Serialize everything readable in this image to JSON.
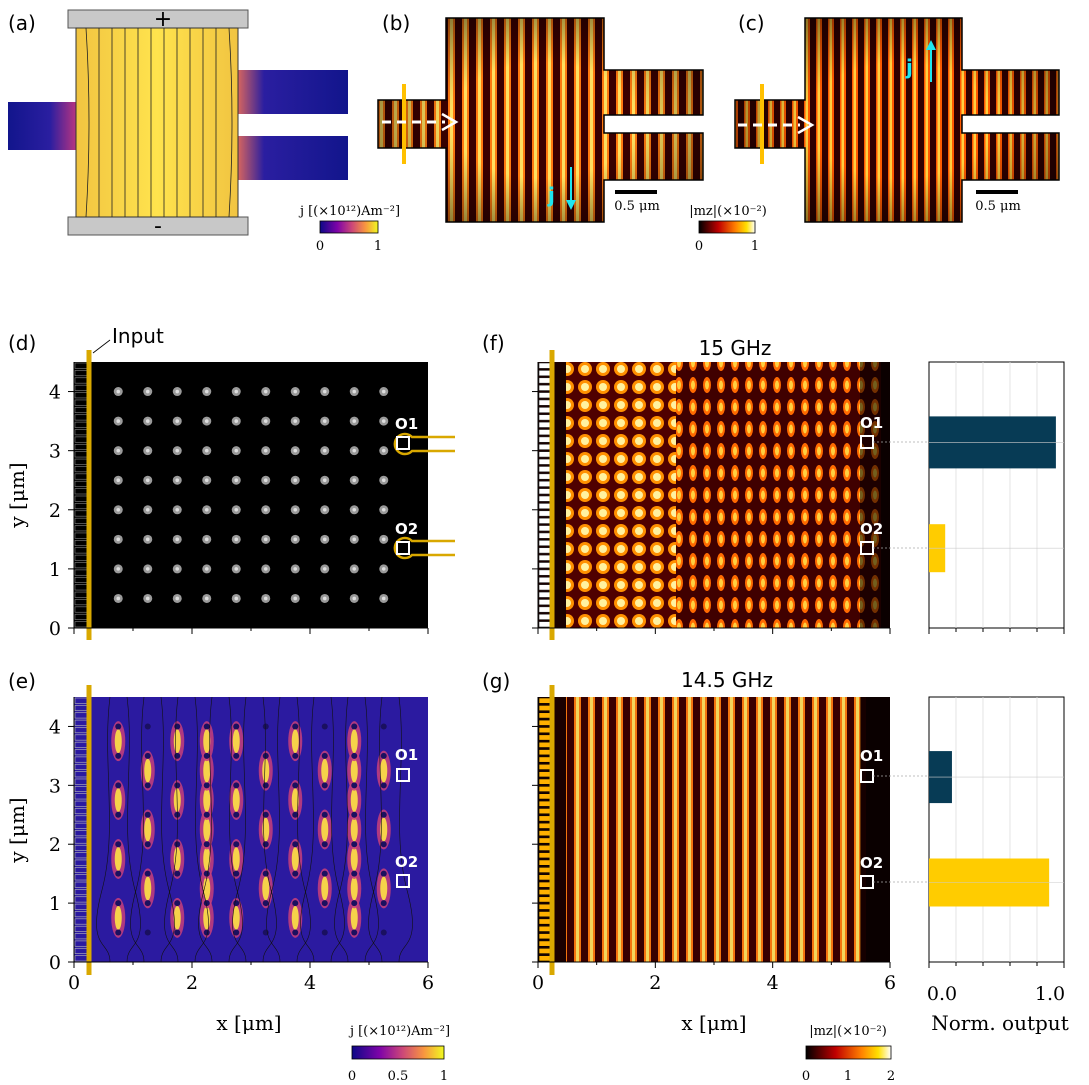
{
  "panels": {
    "a": {
      "label": "(a)",
      "plus": "+",
      "minus": "-",
      "colorbar": {
        "title": "j [(×10¹²)Am⁻²]",
        "ticks": [
          "0",
          "1"
        ]
      }
    },
    "b": {
      "label": "(b)",
      "current": "j",
      "scalebar": "0.5 μm"
    },
    "c": {
      "label": "(c)",
      "current": "j",
      "scalebar": "0.5 μm",
      "colorbar": {
        "title": "|mz|(×10⁻²)",
        "ticks": [
          "0",
          "1"
        ]
      }
    },
    "d": {
      "label": "(d)",
      "input_label": "Input",
      "outputs": [
        "O1",
        "O2"
      ]
    },
    "e": {
      "label": "(e)",
      "outputs": [
        "O1",
        "O2"
      ],
      "colorbar": {
        "title": "j [(×10¹²)Am⁻²]",
        "ticks": [
          "0",
          "0.5",
          "1"
        ]
      }
    },
    "f": {
      "label": "(f)",
      "title": "15 GHz",
      "outputs": [
        "O1",
        "O2"
      ]
    },
    "g": {
      "label": "(g)",
      "title": "14.5 GHz",
      "outputs": [
        "O1",
        "O2"
      ],
      "colorbar": {
        "title": "|mz|(×10⁻²)",
        "ticks": [
          "0",
          "1",
          "2"
        ]
      }
    }
  },
  "axes": {
    "ylabel": "y [μm]",
    "xlabel": "x [μm]",
    "x_ticks": [
      "0",
      "2",
      "4",
      "6"
    ],
    "y_ticks": [
      "0",
      "1",
      "2",
      "3",
      "4"
    ],
    "bar_xlabel": "Norm. output",
    "bar_ticks": [
      "0.0",
      "1.0"
    ]
  },
  "chart_data": [
    {
      "type": "bar",
      "title": "15 GHz",
      "orientation": "horizontal",
      "categories": [
        "O1",
        "O2"
      ],
      "values": [
        0.94,
        0.12
      ],
      "xlim": [
        0,
        1.0
      ],
      "xlabel": "Norm. output",
      "colors": {
        "O1": "#073b55",
        "O2": "#ffcc00"
      }
    },
    {
      "type": "bar",
      "title": "14.5 GHz",
      "orientation": "horizontal",
      "categories": [
        "O1",
        "O2"
      ],
      "values": [
        0.17,
        0.89
      ],
      "xlim": [
        0,
        1.0
      ],
      "xlabel": "Norm. output",
      "colors": {
        "O1": "#073b55",
        "O2": "#ffcc00"
      }
    }
  ],
  "colors": {
    "gold": "#d9a800",
    "navy": "#073b55",
    "yellow": "#ffcc00",
    "cyan": "#1ee6f0"
  }
}
